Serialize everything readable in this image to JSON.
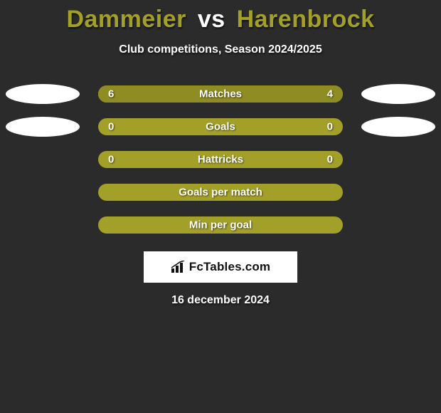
{
  "background_color": "#2b2b2b",
  "title": {
    "player_a": "Dammeier",
    "vs": "vs",
    "player_b": "Harenbrock",
    "color_players": "#a3a02a",
    "color_vs": "#ffffff",
    "fontsize": 34
  },
  "subtitle": {
    "text": "Club competitions, Season 2024/2025",
    "color": "#ffffff",
    "fontsize": 16
  },
  "bar_style": {
    "track_color": "#a3a02a",
    "height": 24,
    "radius": 12,
    "label_color": "#ffffff",
    "label_fontsize": 15
  },
  "oval_style": {
    "width": 104,
    "height": 28,
    "color_present": "#ffffff",
    "color_absent": "transparent"
  },
  "rows": [
    {
      "label": "Matches",
      "left_value": "6",
      "right_value": "4",
      "left_num": 6,
      "right_num": 4,
      "left_fill_pct": 60,
      "right_fill_pct": 40,
      "left_fill_color": "#8f8c24",
      "right_fill_color": "#8f8c24",
      "show_left_oval": true,
      "show_right_oval": true,
      "show_values": true
    },
    {
      "label": "Goals",
      "left_value": "0",
      "right_value": "0",
      "left_num": 0,
      "right_num": 0,
      "left_fill_pct": 0,
      "right_fill_pct": 0,
      "left_fill_color": "#8f8c24",
      "right_fill_color": "#8f8c24",
      "show_left_oval": true,
      "show_right_oval": true,
      "show_values": true
    },
    {
      "label": "Hattricks",
      "left_value": "0",
      "right_value": "0",
      "left_num": 0,
      "right_num": 0,
      "left_fill_pct": 0,
      "right_fill_pct": 0,
      "left_fill_color": "#8f8c24",
      "right_fill_color": "#8f8c24",
      "show_left_oval": false,
      "show_right_oval": false,
      "show_values": true
    },
    {
      "label": "Goals per match",
      "left_value": "",
      "right_value": "",
      "left_num": 0,
      "right_num": 0,
      "left_fill_pct": 0,
      "right_fill_pct": 0,
      "left_fill_color": "#8f8c24",
      "right_fill_color": "#8f8c24",
      "show_left_oval": false,
      "show_right_oval": false,
      "show_values": false
    },
    {
      "label": "Min per goal",
      "left_value": "",
      "right_value": "",
      "left_num": 0,
      "right_num": 0,
      "left_fill_pct": 0,
      "right_fill_pct": 0,
      "left_fill_color": "#8f8c24",
      "right_fill_color": "#8f8c24",
      "show_left_oval": false,
      "show_right_oval": false,
      "show_values": false
    }
  ],
  "brand": {
    "text": "FcTables.com",
    "bg": "#ffffff",
    "text_color": "#111111",
    "icon_color": "#111111"
  },
  "date": {
    "text": "16 december 2024",
    "color": "#ffffff",
    "fontsize": 16
  }
}
